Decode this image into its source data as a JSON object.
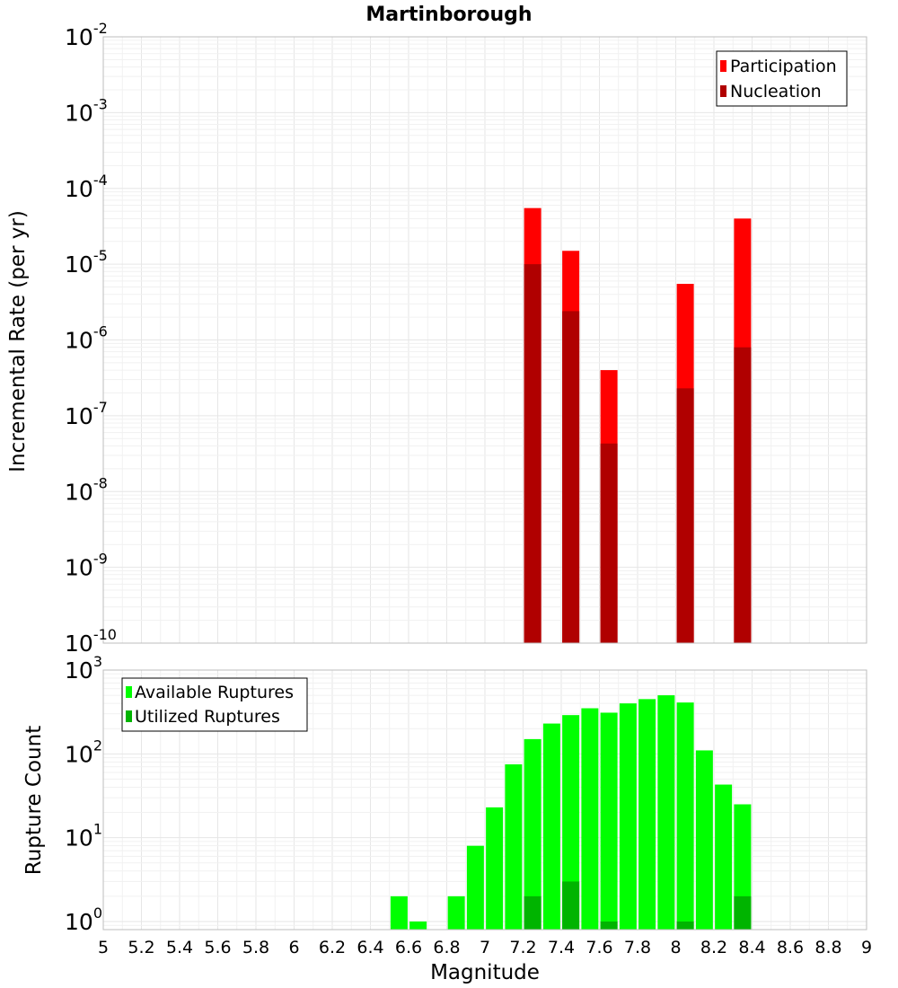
{
  "chart_data": [
    {
      "type": "bar",
      "title": "Martinborough",
      "ylabel": "Incremental Rate (per yr)",
      "xlabel": "",
      "log_y": true,
      "xlim": [
        5,
        9
      ],
      "ylim": [
        1e-10,
        0.01
      ],
      "y_ticks": [
        {
          "base": "10",
          "exp": "-10"
        },
        {
          "base": "10",
          "exp": "-9"
        },
        {
          "base": "10",
          "exp": "-8"
        },
        {
          "base": "10",
          "exp": "-7"
        },
        {
          "base": "10",
          "exp": "-6"
        },
        {
          "base": "10",
          "exp": "-5"
        },
        {
          "base": "10",
          "exp": "-4"
        },
        {
          "base": "10",
          "exp": "-3"
        },
        {
          "base": "10",
          "exp": "-2"
        }
      ],
      "grid": true,
      "legend_position": "top-right",
      "series": [
        {
          "name": "Participation",
          "color": "#ff0000",
          "points": [
            {
              "x": 7.25,
              "y": 5.5e-05
            },
            {
              "x": 7.45,
              "y": 1.5e-05
            },
            {
              "x": 7.65,
              "y": 4e-07
            },
            {
              "x": 8.05,
              "y": 5.5e-06
            },
            {
              "x": 8.35,
              "y": 4e-05
            }
          ]
        },
        {
          "name": "Nucleation",
          "color": "#b00000",
          "points": [
            {
              "x": 7.25,
              "y": 1e-05
            },
            {
              "x": 7.45,
              "y": 2.4e-06
            },
            {
              "x": 7.65,
              "y": 4.3e-08
            },
            {
              "x": 8.05,
              "y": 2.3e-07
            },
            {
              "x": 8.35,
              "y": 8e-07
            }
          ]
        }
      ]
    },
    {
      "type": "bar",
      "title": "",
      "ylabel": "Rupture Count",
      "xlabel": "Magnitude",
      "log_y": true,
      "xlim": [
        5,
        9
      ],
      "ylim": [
        0.8,
        1000
      ],
      "y_ticks": [
        {
          "base": "10",
          "exp": "0"
        },
        {
          "base": "10",
          "exp": "1"
        },
        {
          "base": "10",
          "exp": "2"
        },
        {
          "base": "10",
          "exp": "3"
        }
      ],
      "x_ticks": [
        "5",
        "5.2",
        "5.4",
        "5.6",
        "5.8",
        "6",
        "6.2",
        "6.4",
        "6.6",
        "6.8",
        "7",
        "7.2",
        "7.4",
        "7.6",
        "7.8",
        "8",
        "8.2",
        "8.4",
        "8.6",
        "8.8",
        "9"
      ],
      "grid": true,
      "legend_position": "top-left",
      "series": [
        {
          "name": "Available Ruptures",
          "color": "#00ff00",
          "points": [
            {
              "x": 6.55,
              "y": 2
            },
            {
              "x": 6.65,
              "y": 1
            },
            {
              "x": 6.85,
              "y": 2
            },
            {
              "x": 6.95,
              "y": 8
            },
            {
              "x": 7.05,
              "y": 23
            },
            {
              "x": 7.15,
              "y": 75
            },
            {
              "x": 7.25,
              "y": 150
            },
            {
              "x": 7.35,
              "y": 230
            },
            {
              "x": 7.45,
              "y": 290
            },
            {
              "x": 7.55,
              "y": 350
            },
            {
              "x": 7.65,
              "y": 310
            },
            {
              "x": 7.75,
              "y": 400
            },
            {
              "x": 7.85,
              "y": 450
            },
            {
              "x": 7.95,
              "y": 500
            },
            {
              "x": 8.05,
              "y": 410
            },
            {
              "x": 8.15,
              "y": 110
            },
            {
              "x": 8.25,
              "y": 43
            },
            {
              "x": 8.35,
              "y": 25
            }
          ]
        },
        {
          "name": "Utilized Ruptures",
          "color": "#00b400",
          "points": [
            {
              "x": 7.25,
              "y": 2
            },
            {
              "x": 7.45,
              "y": 3
            },
            {
              "x": 7.65,
              "y": 1
            },
            {
              "x": 8.05,
              "y": 1
            },
            {
              "x": 8.35,
              "y": 2
            }
          ]
        }
      ]
    }
  ]
}
